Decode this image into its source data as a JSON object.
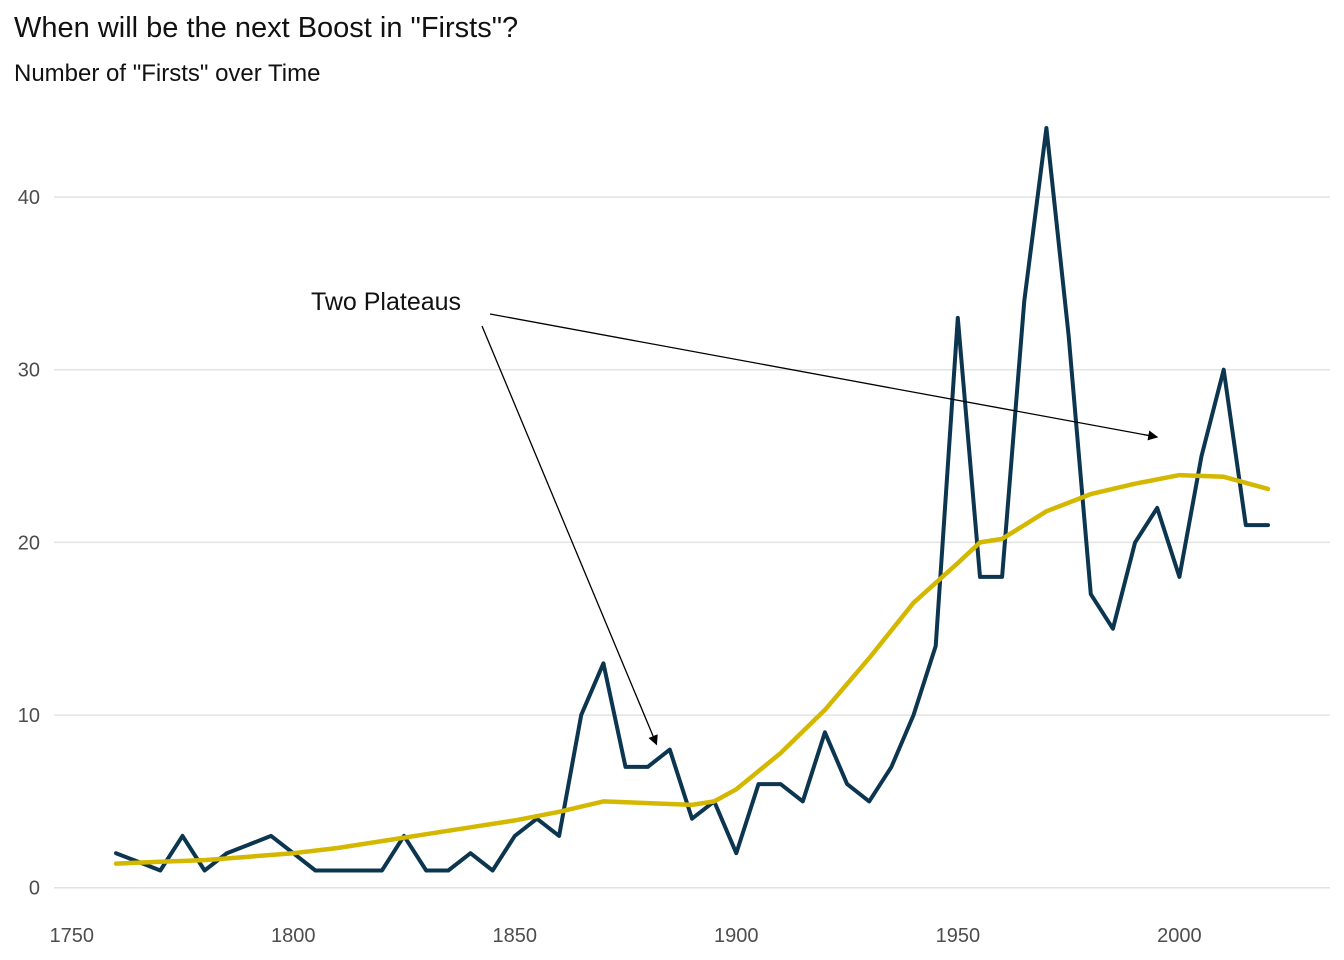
{
  "title": "When will be the next Boost in \"Firsts\"?",
  "subtitle": "Number of \"Firsts\" over Time",
  "colors": {
    "series": "#0c3650",
    "trend": "#d4b800",
    "grid": "#e3e3e3",
    "annotation": "#000000"
  },
  "chart_data": {
    "type": "line",
    "title": "When will be the next Boost in \"Firsts\"?",
    "subtitle": "Number of \"Firsts\" over Time",
    "xlabel": "",
    "ylabel": "",
    "xlim": [
      1746,
      2034
    ],
    "ylim": [
      -1,
      44
    ],
    "x_ticks": [
      1750,
      1800,
      1850,
      1900,
      1950,
      2000
    ],
    "y_ticks": [
      0,
      10,
      20,
      30,
      40
    ],
    "grid": "horizontal major",
    "legend": "none",
    "series": [
      {
        "values_x": [
          1760,
          1765,
          1770,
          1775,
          1780,
          1785,
          1790,
          1795,
          1800,
          1805,
          1810,
          1815,
          1820,
          1825,
          1830,
          1835,
          1840,
          1845,
          1850,
          1855,
          1860,
          1865,
          1870,
          1875,
          1880,
          1885,
          1890,
          1895,
          1900,
          1905,
          1910,
          1915,
          1920,
          1925,
          1930,
          1935,
          1940,
          1945,
          1950,
          1955,
          1960,
          1965,
          1970,
          1975,
          1980,
          1985,
          1990,
          1995,
          2000,
          2005,
          2010,
          2015,
          2020
        ],
        "values": [
          2,
          1.5,
          1,
          3,
          1,
          2,
          2.5,
          3,
          2,
          1,
          1,
          1,
          1,
          3,
          1,
          1,
          2,
          1,
          3,
          4,
          3,
          10,
          13,
          7,
          7,
          8,
          4,
          5,
          2,
          6,
          6,
          5,
          9,
          6,
          5,
          7,
          10,
          14,
          33,
          18,
          18,
          34,
          44,
          32,
          17,
          15,
          20,
          22,
          18,
          25,
          30,
          21,
          21
        ]
      },
      {
        "values_x": [
          1760,
          1770,
          1780,
          1790,
          1800,
          1810,
          1820,
          1830,
          1840,
          1850,
          1860,
          1870,
          1880,
          1890,
          1895,
          1900,
          1910,
          1920,
          1930,
          1940,
          1950,
          1955,
          1960,
          1970,
          1980,
          1990,
          2000,
          2010,
          2020
        ],
        "values": [
          1.4,
          1.5,
          1.6,
          1.8,
          2.0,
          2.3,
          2.7,
          3.1,
          3.5,
          3.9,
          4.4,
          5.0,
          4.9,
          4.8,
          5.0,
          5.7,
          7.8,
          10.3,
          13.3,
          16.5,
          18.8,
          20.0,
          20.2,
          21.8,
          22.8,
          23.4,
          23.9,
          23.8,
          23.1
        ]
      }
    ],
    "annotations": [
      {
        "text": "Two Plateaus",
        "arrows_to": [
          [
            1882,
            8.3
          ],
          [
            1995,
            26.1
          ]
        ]
      }
    ]
  }
}
